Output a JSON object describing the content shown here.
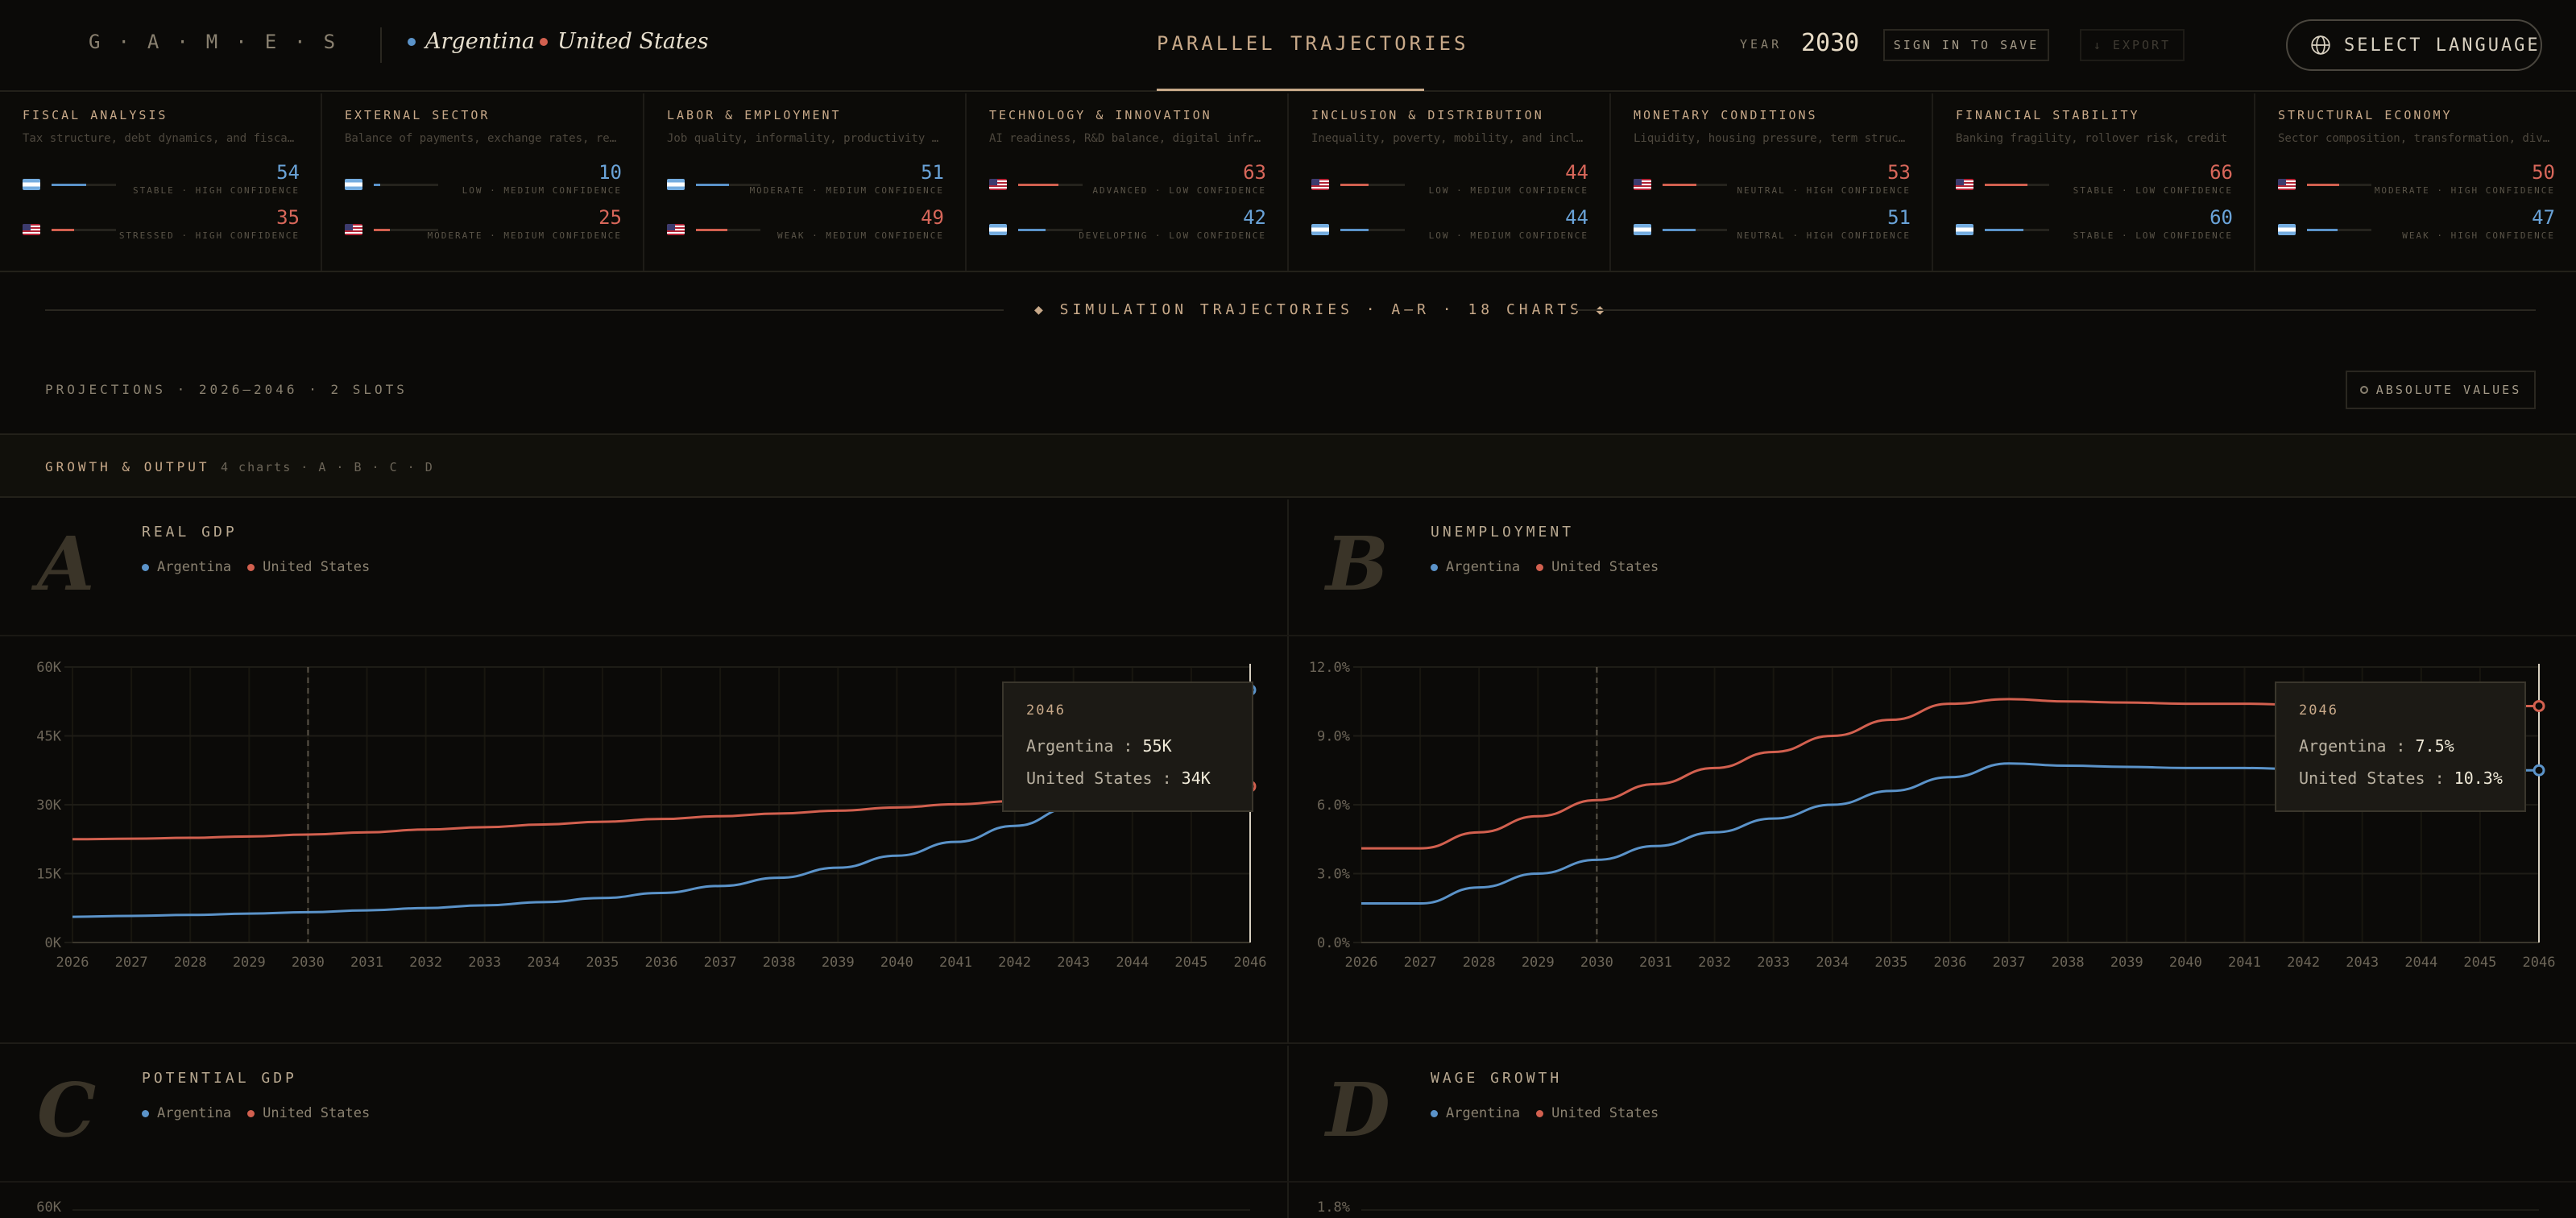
{
  "header": {
    "brand": "G·A·M·E·S",
    "countries": [
      {
        "name": "Argentina",
        "color": "#5b93c9"
      },
      {
        "name": "United States",
        "color": "#d2604f"
      }
    ],
    "title": "PARALLEL TRAJECTORIES",
    "year_label": "YEAR",
    "year_value": "2030",
    "sign_in_label": "SIGN IN TO SAVE",
    "export_label": "↓ EXPORT",
    "language_label": "SELECT LANGUAGE"
  },
  "indicators": [
    {
      "title": "FISCAL ANALYSIS",
      "desc": "Tax structure, debt dynamics, and fiscal space",
      "rows": [
        {
          "country": "ar",
          "score": "54",
          "level": 0.54,
          "status": "STABLE · HIGH CONFIDENCE"
        },
        {
          "country": "us",
          "score": "35",
          "level": 0.35,
          "status": "STRESSED · HIGH CONFIDENCE"
        }
      ]
    },
    {
      "title": "EXTERNAL SECTOR",
      "desc": "Balance of payments, exchange rates, reserves",
      "rows": [
        {
          "country": "ar",
          "score": "10",
          "level": 0.1,
          "status": "LOW · MEDIUM CONFIDENCE"
        },
        {
          "country": "us",
          "score": "25",
          "level": 0.25,
          "status": "MODERATE · MEDIUM CONFIDENCE"
        }
      ]
    },
    {
      "title": "LABOR & EMPLOYMENT",
      "desc": "Job quality, informality, productivity growth",
      "rows": [
        {
          "country": "ar",
          "score": "51",
          "level": 0.51,
          "status": "MODERATE · MEDIUM CONFIDENCE"
        },
        {
          "country": "us",
          "score": "49",
          "level": 0.49,
          "status": "WEAK · MEDIUM CONFIDENCE"
        }
      ]
    },
    {
      "title": "TECHNOLOGY & INNOVATION",
      "desc": "AI readiness, R&D balance, digital infrastructure",
      "rows": [
        {
          "country": "us",
          "score": "63",
          "level": 0.63,
          "status": "ADVANCED · LOW CONFIDENCE"
        },
        {
          "country": "ar",
          "score": "42",
          "level": 0.42,
          "status": "DEVELOPING · LOW CONFIDENCE"
        }
      ]
    },
    {
      "title": "INCLUSION & DISTRIBUTION",
      "desc": "Inequality, poverty, mobility, and inclusion",
      "rows": [
        {
          "country": "us",
          "score": "44",
          "level": 0.44,
          "status": "LOW · MEDIUM CONFIDENCE"
        },
        {
          "country": "ar",
          "score": "44",
          "level": 0.44,
          "status": "LOW · MEDIUM CONFIDENCE"
        }
      ]
    },
    {
      "title": "MONETARY CONDITIONS",
      "desc": "Liquidity, housing pressure, term structure",
      "rows": [
        {
          "country": "us",
          "score": "53",
          "level": 0.53,
          "status": "NEUTRAL · HIGH CONFIDENCE"
        },
        {
          "country": "ar",
          "score": "51",
          "level": 0.51,
          "status": "NEUTRAL · HIGH CONFIDENCE"
        }
      ]
    },
    {
      "title": "FINANCIAL STABILITY",
      "desc": "Banking fragility, rollover risk, credit",
      "rows": [
        {
          "country": "us",
          "score": "66",
          "level": 0.66,
          "status": "STABLE · LOW CONFIDENCE"
        },
        {
          "country": "ar",
          "score": "60",
          "level": 0.6,
          "status": "STABLE · LOW CONFIDENCE"
        }
      ]
    },
    {
      "title": "STRUCTURAL ECONOMY",
      "desc": "Sector composition, transformation, diversification",
      "rows": [
        {
          "country": "us",
          "score": "50",
          "level": 0.5,
          "status": "MODERATE · HIGH CONFIDENCE"
        },
        {
          "country": "ar",
          "score": "47",
          "level": 0.47,
          "status": "WEAK · HIGH CONFIDENCE"
        }
      ]
    }
  ],
  "section": {
    "banner": "◆ SIMULATION TRAJECTORIES · A–R · 18 CHARTS ◆",
    "projections": "PROJECTIONS · 2026–2046 · 2 SLOTS",
    "absolute_label": "ABSOLUTE VALUES",
    "group_title": "GROWTH & OUTPUT",
    "group_sub": "4 charts · A · B · C · D"
  },
  "legend": {
    "ar": "Argentina",
    "us": "United States"
  },
  "panels": [
    {
      "letter": "A",
      "title": "REAL GDP"
    },
    {
      "letter": "B",
      "title": "UNEMPLOYMENT"
    },
    {
      "letter": "C",
      "title": "POTENTIAL GDP"
    },
    {
      "letter": "D",
      "title": "WAGE GROWTH"
    }
  ],
  "chart_data": [
    {
      "type": "line",
      "title": "REAL GDP",
      "x": [
        2026,
        2027,
        2028,
        2029,
        2030,
        2031,
        2032,
        2033,
        2034,
        2035,
        2036,
        2037,
        2038,
        2039,
        2040,
        2041,
        2042,
        2043,
        2044,
        2045,
        2046
      ],
      "yticks": [
        "0K",
        "15K",
        "30K",
        "45K",
        "60K"
      ],
      "ylim": [
        0,
        60
      ],
      "xticks": [
        "2026",
        "2027",
        "2028",
        "2029",
        "2030",
        "2031",
        "2032",
        "2033",
        "2034",
        "2035",
        "2036",
        "2037",
        "2038",
        "2039",
        "2040",
        "2041",
        "2042",
        "2043",
        "2044",
        "2045",
        "2046"
      ],
      "marker_year": 2030,
      "series": [
        {
          "name": "Argentina",
          "color": "#5b93c9",
          "values": [
            5.6,
            5.8,
            6.0,
            6.3,
            6.6,
            7.0,
            7.5,
            8.1,
            8.8,
            9.7,
            10.8,
            12.3,
            14.1,
            16.3,
            18.9,
            21.9,
            25.4,
            29.5,
            38.5,
            47.0,
            55.0
          ]
        },
        {
          "name": "United States",
          "color": "#d2604f",
          "values": [
            22.5,
            22.6,
            22.8,
            23.1,
            23.5,
            24.0,
            24.6,
            25.1,
            25.7,
            26.3,
            26.9,
            27.5,
            28.1,
            28.7,
            29.4,
            30.1,
            30.8,
            31.6,
            32.4,
            33.2,
            34.0
          ]
        }
      ],
      "tooltip": {
        "year": "2046",
        "ar_label": "Argentina :",
        "ar_value": "55K",
        "us_label": "United States :",
        "us_value": "34K"
      }
    },
    {
      "type": "line",
      "title": "UNEMPLOYMENT",
      "x": [
        2026,
        2027,
        2028,
        2029,
        2030,
        2031,
        2032,
        2033,
        2034,
        2035,
        2036,
        2037,
        2038,
        2039,
        2040,
        2041,
        2042,
        2043,
        2044,
        2045,
        2046
      ],
      "yticks": [
        "0.0%",
        "3.0%",
        "6.0%",
        "9.0%",
        "12.0%"
      ],
      "ylim": [
        0,
        12
      ],
      "xticks": [
        "2026",
        "2027",
        "2028",
        "2029",
        "2030",
        "2031",
        "2032",
        "2033",
        "2034",
        "2035",
        "2036",
        "2037",
        "2038",
        "2039",
        "2040",
        "2041",
        "2042",
        "2043",
        "2044",
        "2045",
        "2046"
      ],
      "marker_year": 2030,
      "series": [
        {
          "name": "Argentina",
          "color": "#5b93c9",
          "values": [
            1.7,
            1.7,
            2.4,
            3.0,
            3.6,
            4.2,
            4.8,
            5.4,
            6.0,
            6.6,
            7.2,
            7.8,
            7.7,
            7.65,
            7.6,
            7.6,
            7.55,
            7.55,
            7.5,
            7.5,
            7.5
          ]
        },
        {
          "name": "United States",
          "color": "#d2604f",
          "values": [
            4.1,
            4.1,
            4.8,
            5.5,
            6.2,
            6.9,
            7.6,
            8.3,
            9.0,
            9.7,
            10.4,
            10.6,
            10.5,
            10.45,
            10.4,
            10.4,
            10.35,
            10.35,
            10.3,
            10.3,
            10.3
          ]
        }
      ],
      "tooltip": {
        "year": "2046",
        "ar_label": "Argentina :",
        "ar_value": "7.5%",
        "us_label": "United States :",
        "us_value": "10.3%"
      }
    },
    {
      "type": "line",
      "title": "POTENTIAL GDP",
      "yticks": [
        "60K"
      ],
      "series": []
    },
    {
      "type": "line",
      "title": "WAGE GROWTH",
      "yticks": [
        "1.8%"
      ],
      "series": []
    }
  ]
}
